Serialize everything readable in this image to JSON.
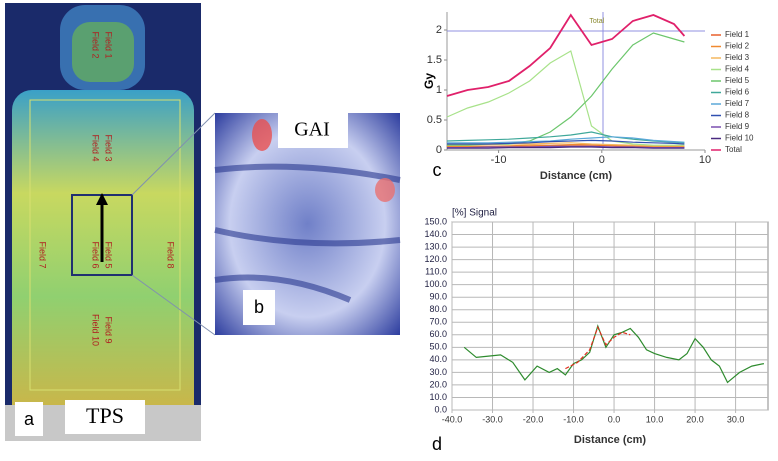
{
  "panels": {
    "a": {
      "letter": "a",
      "caption": "TPS",
      "field_labels": [
        "Field 2",
        "Field 1",
        "Field 4",
        "Field 3",
        "Field 7",
        "Field 6",
        "Field 5",
        "Field 8",
        "Field 10",
        "Field 9"
      ]
    },
    "b": {
      "letter": "b",
      "caption": "GAI"
    },
    "c": {
      "letter": "c"
    },
    "d": {
      "letter": "d"
    }
  },
  "chart_data": [
    {
      "type": "line",
      "x_label": "Distance (cm)",
      "y_label": "Gy",
      "xlim": [
        -15,
        10
      ],
      "ylim": [
        0,
        2.3
      ],
      "xticks": [
        -10,
        0,
        10
      ],
      "yticks": [
        0,
        0.5,
        1,
        1.5,
        2
      ],
      "legend": "right",
      "annotations": [
        {
          "text": "Total",
          "x": -1.2,
          "y": 2.15
        }
      ],
      "x": [
        -15,
        -13,
        -11,
        -9,
        -7,
        -5,
        -3,
        -1,
        1,
        3,
        5,
        7,
        8
      ],
      "series": [
        {
          "name": "Field 1",
          "color": "#e8602c",
          "values": [
            0.05,
            0.05,
            0.05,
            0.06,
            0.06,
            0.07,
            0.08,
            0.08,
            0.07,
            0.06,
            0.05,
            0.05,
            0.05
          ]
        },
        {
          "name": "Field 2",
          "color": "#f08a30",
          "values": [
            0.06,
            0.06,
            0.06,
            0.07,
            0.08,
            0.08,
            0.09,
            0.09,
            0.08,
            0.07,
            0.06,
            0.06,
            0.06
          ]
        },
        {
          "name": "Field 3",
          "color": "#f4b860",
          "values": [
            0.08,
            0.08,
            0.09,
            0.1,
            0.1,
            0.11,
            0.12,
            0.1,
            0.09,
            0.08,
            0.07,
            0.07,
            0.07
          ]
        },
        {
          "name": "Field 4",
          "color": "#a8e28a",
          "values": [
            0.55,
            0.7,
            0.8,
            0.95,
            1.15,
            1.45,
            1.65,
            0.4,
            0.15,
            0.1,
            0.08,
            0.08,
            0.08
          ]
        },
        {
          "name": "Field 5",
          "color": "#6cc66c",
          "values": [
            0.08,
            0.08,
            0.1,
            0.1,
            0.15,
            0.3,
            0.55,
            0.9,
            1.35,
            1.75,
            1.95,
            1.85,
            1.8
          ]
        },
        {
          "name": "Field 6",
          "color": "#3fa89a",
          "values": [
            0.15,
            0.16,
            0.17,
            0.18,
            0.2,
            0.22,
            0.25,
            0.3,
            0.22,
            0.18,
            0.15,
            0.13,
            0.12
          ]
        },
        {
          "name": "Field 7",
          "color": "#5aa8d8",
          "values": [
            0.12,
            0.12,
            0.12,
            0.13,
            0.14,
            0.15,
            0.18,
            0.2,
            0.22,
            0.2,
            0.16,
            0.14,
            0.13
          ]
        },
        {
          "name": "Field 8",
          "color": "#3050b0",
          "values": [
            0.1,
            0.1,
            0.1,
            0.11,
            0.12,
            0.14,
            0.15,
            0.16,
            0.15,
            0.13,
            0.12,
            0.11,
            0.1
          ]
        },
        {
          "name": "Field 9",
          "color": "#7a4fb0",
          "values": [
            0.04,
            0.04,
            0.05,
            0.05,
            0.05,
            0.06,
            0.06,
            0.06,
            0.05,
            0.05,
            0.04,
            0.04,
            0.04
          ]
        },
        {
          "name": "Field 10",
          "color": "#4a2a80",
          "values": [
            0.03,
            0.03,
            0.03,
            0.04,
            0.04,
            0.04,
            0.05,
            0.05,
            0.04,
            0.04,
            0.03,
            0.03,
            0.03
          ]
        },
        {
          "name": "Total",
          "color": "#e0206a",
          "values": [
            0.9,
            1.0,
            1.05,
            1.15,
            1.4,
            1.7,
            2.25,
            1.75,
            1.85,
            2.15,
            2.25,
            2.1,
            1.9
          ]
        }
      ]
    },
    {
      "type": "line",
      "title": "[%] Signal",
      "x_label": "Distance (cm)",
      "xlim": [
        -40,
        38
      ],
      "ylim": [
        0,
        150
      ],
      "grid": true,
      "xticks": [
        {
          "value": -40,
          "label": "-40.0"
        },
        {
          "value": -30,
          "label": "-30.0"
        },
        {
          "value": -20,
          "label": "-20.0"
        },
        {
          "value": -10,
          "label": "-10.0"
        },
        {
          "value": 0,
          "label": "0.0"
        },
        {
          "value": 10,
          "label": "10.0"
        },
        {
          "value": 20,
          "label": "20.0"
        },
        {
          "value": 30,
          "label": "30.0"
        }
      ],
      "yticks": [
        {
          "value": 0,
          "label": "0.0"
        },
        {
          "value": 10,
          "label": "10.0"
        },
        {
          "value": 20,
          "label": "20.0"
        },
        {
          "value": 30,
          "label": "30.0"
        },
        {
          "value": 40,
          "label": "40.0"
        },
        {
          "value": 50,
          "label": "50.0"
        },
        {
          "value": 60,
          "label": "60.0"
        },
        {
          "value": 70,
          "label": "70.0"
        },
        {
          "value": 80,
          "label": "80.0"
        },
        {
          "value": 90,
          "label": "90.0"
        },
        {
          "value": 100,
          "label": "100.0"
        },
        {
          "value": 110,
          "label": "110.0"
        },
        {
          "value": 120,
          "label": "120.0"
        },
        {
          "value": 130,
          "label": "130.0"
        },
        {
          "value": 140,
          "label": "140.0"
        },
        {
          "value": 150,
          "label": "150.0"
        }
      ],
      "series": [
        {
          "color": "#2e8b2e",
          "x": [
            -37,
            -34,
            -31,
            -28,
            -25,
            -22,
            -19,
            -16,
            -14,
            -12,
            -10,
            -8,
            -6,
            -4,
            -2,
            0,
            2,
            4,
            6,
            8,
            10,
            13,
            16,
            18,
            20,
            22,
            24,
            26,
            28,
            31,
            34,
            37
          ],
          "values": [
            50,
            42,
            43,
            44,
            38,
            24,
            35,
            30,
            33,
            28,
            37,
            40,
            46,
            67,
            50,
            60,
            62,
            65,
            58,
            48,
            45,
            42,
            40,
            45,
            57,
            50,
            40,
            35,
            22,
            30,
            35,
            37
          ]
        },
        {
          "color": "#e03020",
          "dashed": true,
          "x": [
            -12,
            -9,
            -6,
            -4,
            -2,
            0,
            2,
            4
          ],
          "values": [
            33,
            38,
            48,
            66,
            52,
            58,
            62,
            60
          ]
        }
      ]
    }
  ]
}
